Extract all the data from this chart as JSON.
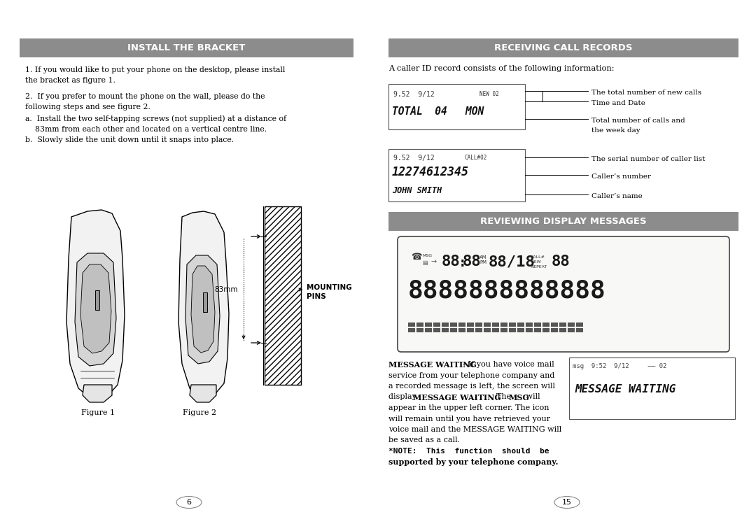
{
  "bg_color": "#ffffff",
  "header_bg": "#8c8c8c",
  "header_text_color": "#ffffff",
  "body_text_color": "#000000",
  "page_width": 10.8,
  "page_height": 7.39,
  "left_header": "INSTALL THE BRACKET",
  "right_header": "RECEIVING CALL RECORDS",
  "subheader2": "REVIEWING DISPLAY MESSAGES",
  "page_num_left": "6",
  "page_num_right": "15",
  "left_body_para1_line1": "1. If you would like to put your phone on the desktop, please install",
  "left_body_para1_line2": "the bracket as figure 1.",
  "left_body_para2_line1": "2.  If you prefer to mount the phone on the wall, please do the",
  "left_body_para2_line2": "following steps and see figure 2.",
  "left_body_para2_line3": "a.  Install the two self-tapping screws (not supplied) at a distance of",
  "left_body_para2_line4": "    83mm from each other and located on a vertical centre line.",
  "left_body_para2_line5": "b.  Slowly slide the unit down until it snaps into place.",
  "right_body_intro": "A caller ID record consists of the following information:",
  "ann_new_calls": "The total number of new calls",
  "ann_time_date": "Time and Date",
  "ann_total_calls": "Total number of calls and",
  "ann_week_day": "the week day",
  "ann_serial": "The serial number of caller list",
  "ann_caller_num": "Caller’s number",
  "ann_caller_name": "Caller’s name",
  "disp1_top": "9:52  9/12        NEW 02",
  "disp1_bot": "TOTAL  04   MON",
  "disp2_top": "9:52  9/12    CALL#02",
  "disp2_mid": "12274612345",
  "disp2_bot": "JOHN SMITH",
  "mw_line1a_bold": "MESSAGE WAITING",
  "mw_line1b": " - If you have voice mail",
  "mw_line2": "service from your telephone company and",
  "mw_line3": "a recorded message is left, the screen will",
  "mw_line4a": "display ",
  "mw_line4b_bold": "MESSAGE WAITING",
  "mw_line4c": ". The ",
  "mw_line4d_bold": "MSG",
  "mw_line4e": " will",
  "mw_line5": "appear in the upper left corner. The icon",
  "mw_line6": "will remain until you have retrieved your",
  "mw_line7": "voice mail and the MESSAGE WAITING will",
  "mw_line8": "be saved as a call.",
  "mw_line9_bold": "*NOTE:  This  function  should  be",
  "mw_line10_bold": "supported by your telephone company.",
  "mw_disp_top": "msg  9:52  9/12     —— 02",
  "mw_disp_bot": "MESSAGE WAITING",
  "label_83mm": "83mm",
  "label_mounting": "MOUNTING",
  "label_pins": "PINS",
  "label_fig1": "Figure 1",
  "label_fig2": "Figure 2"
}
